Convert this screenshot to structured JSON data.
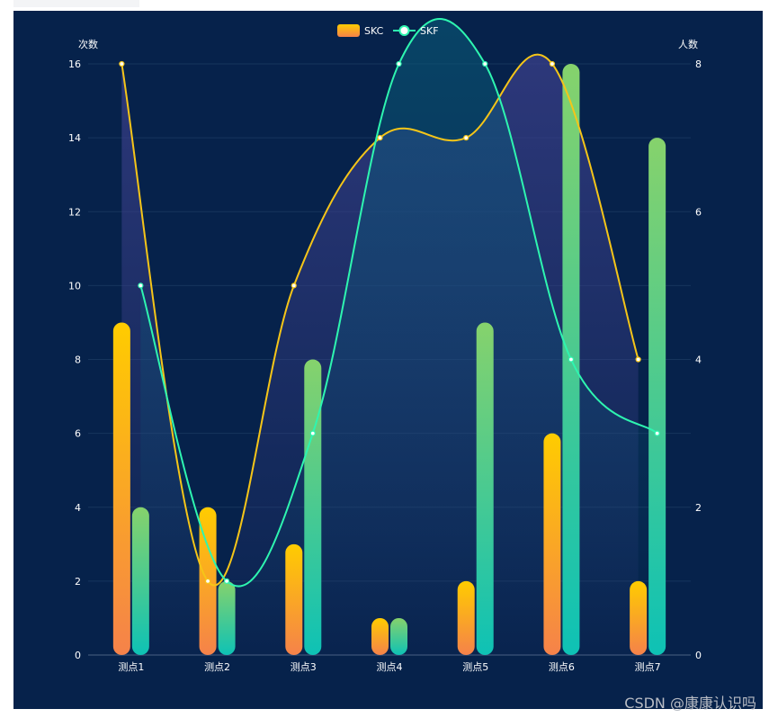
{
  "chart_data": {
    "type": "bar",
    "categories": [
      "测点1",
      "测点2",
      "测点3",
      "测点4",
      "测点5",
      "测点6",
      "测点7"
    ],
    "y_left": {
      "name": "次数",
      "min": 0,
      "max": 16,
      "ticks": [
        0,
        2,
        4,
        6,
        8,
        10,
        12,
        14,
        16
      ]
    },
    "y_right": {
      "name": "人数",
      "min": 0,
      "max": 8,
      "ticks": [
        0,
        2,
        4,
        6,
        8
      ]
    },
    "legend": [
      {
        "name": "SKC",
        "icon": "gradient-bar"
      },
      {
        "name": "SKF",
        "icon": "line-circle"
      }
    ],
    "bars": [
      {
        "name": "SKC",
        "axis": "left",
        "values": [
          9,
          4,
          3,
          1,
          2,
          6,
          2
        ],
        "colors": [
          "#ffcc00",
          "#f5824a"
        ]
      },
      {
        "name": "SKF",
        "axis": "left",
        "values": [
          4,
          2,
          8,
          1,
          9,
          16,
          14
        ],
        "colors": [
          "#86d26c",
          "#0ec2b5"
        ]
      }
    ],
    "lines": [
      {
        "name": "SKC",
        "axis": "right",
        "smooth": true,
        "color": "#f5c518",
        "values": [
          8,
          1,
          5,
          7,
          7,
          8,
          4
        ]
      },
      {
        "name": "SKF",
        "axis": "right",
        "smooth": true,
        "color": "#2ef5b0",
        "values": [
          5,
          1,
          3,
          8,
          8,
          4,
          3
        ]
      }
    ],
    "grid": true,
    "legend_position": "top-center"
  },
  "watermark": "CSDN @康康认识吗"
}
